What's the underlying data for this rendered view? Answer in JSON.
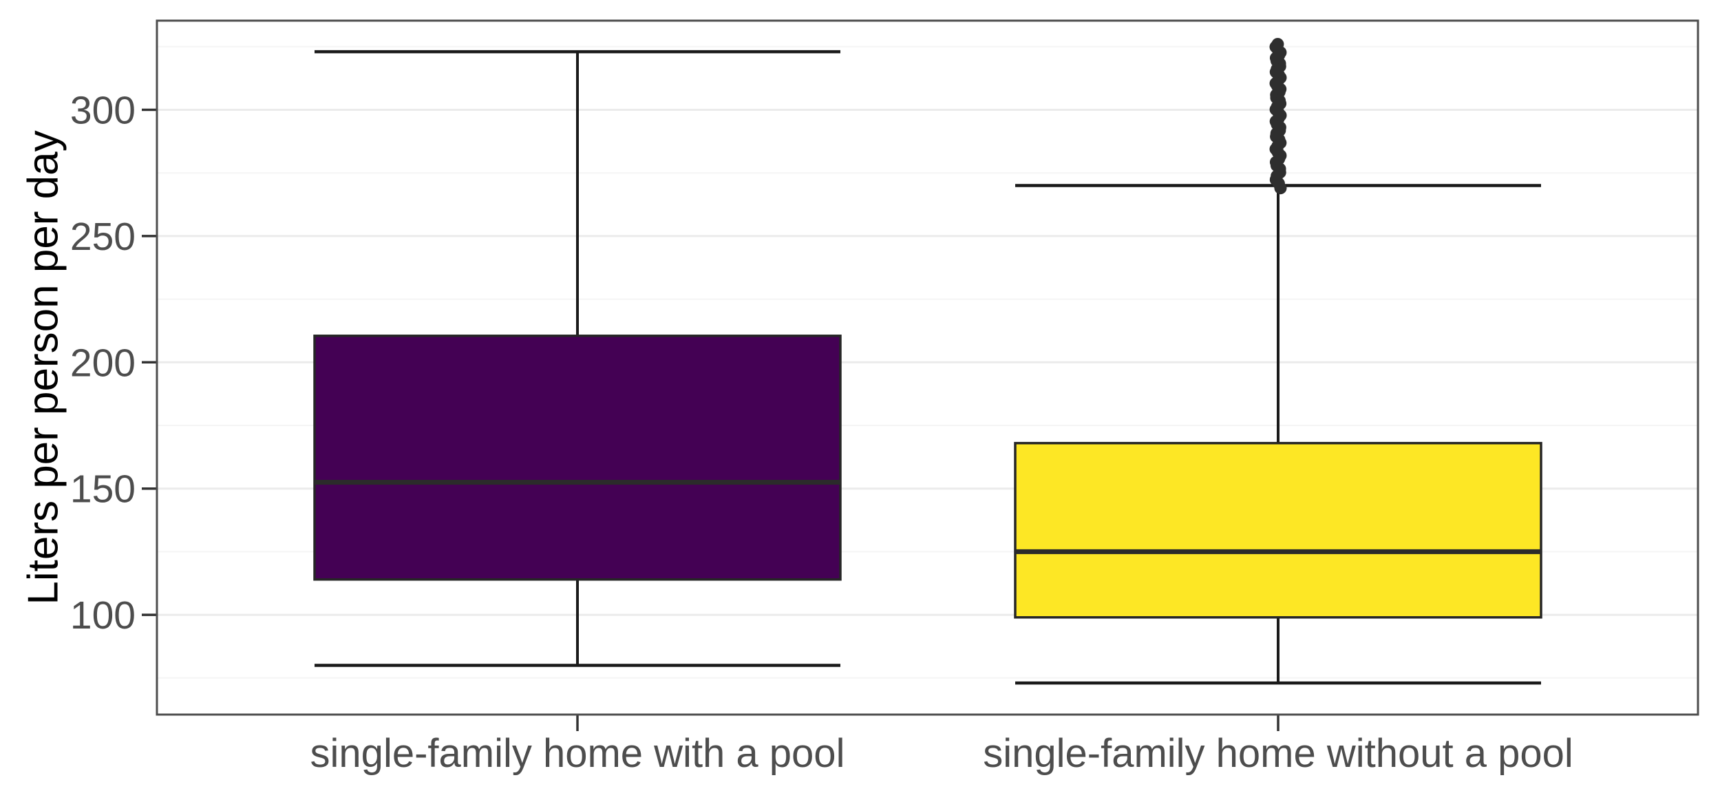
{
  "chart_data": {
    "type": "boxplot",
    "title": "",
    "xlabel": "",
    "ylabel": "Liters per person per day",
    "categories": [
      "single-family home with a pool",
      "single-family home without a pool"
    ],
    "y_ticks": [
      100,
      150,
      200,
      250,
      300
    ],
    "y_minor_ticks": [
      75,
      125,
      175,
      225,
      275,
      325
    ],
    "ylim": [
      60.5,
      335.3
    ],
    "grid": "horizontal major and minor gridlines on white panel, gray panel border",
    "legend": "none",
    "series": [
      {
        "name": "single-family home with a pool",
        "fill": "#440154",
        "whisker_low": 80,
        "q1": 114,
        "median": 152.5,
        "q3": 210.5,
        "whisker_high": 323,
        "outliers": null
      },
      {
        "name": "single-family home without a pool",
        "fill": "#FDE725",
        "whisker_low": 73,
        "q1": 99,
        "median": 125,
        "q3": 168,
        "whisker_high": 270,
        "outliers": {
          "min": 269,
          "max": 326,
          "count": 48,
          "appearance": "dense vertical cluster of dark overlapping dots above upper whisker"
        }
      }
    ],
    "colors": {
      "background": "#FFFFFF",
      "panel_background": "#FFFFFF",
      "panel_border": "#4D4D4D",
      "grid_major": "#EBEBEB",
      "grid_minor": "#F5F5F5",
      "box_stroke": "#262626",
      "median": "#2B2B2B",
      "whisker": "#1A1A1A",
      "outlier": "#2E2E2E",
      "axis_text": "#4D4D4D",
      "axis_tick": "#333333",
      "y_title": "#000000"
    }
  }
}
